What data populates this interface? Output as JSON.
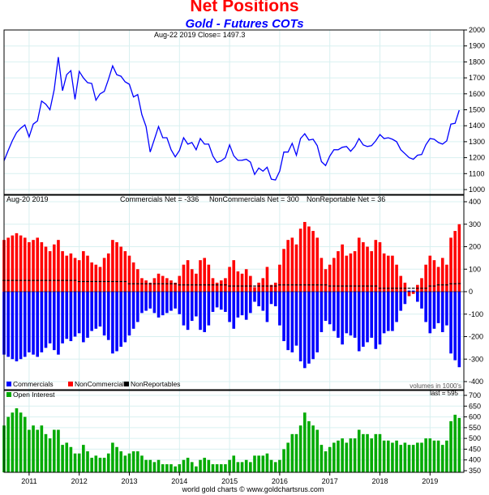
{
  "title": "Net Positions",
  "subtitle": "Gold - Futures COTs",
  "footer": "world gold charts © www.goldchartsrus.com",
  "colors": {
    "price": "#0000ff",
    "commercials": "#0000ff",
    "noncommercials": "#ff0000",
    "nonreportables": "#000000",
    "open_interest": "#00aa00",
    "grid": "#d8f0f0"
  },
  "chart_data": [
    {
      "type": "line",
      "name": "price",
      "header": "Aug-22  2019   Close= 1497.3",
      "start": 2010.5,
      "step": 0.08333,
      "ylim": [
        1000,
        2000
      ],
      "yticks": [
        "2000",
        "1900",
        "1800",
        "1700",
        "1600",
        "1500",
        "1400",
        "1300",
        "1200",
        "1100",
        "1000"
      ],
      "values": [
        1180,
        1245,
        1307,
        1357,
        1385,
        1405,
        1330,
        1410,
        1430,
        1555,
        1535,
        1500,
        1625,
        1830,
        1620,
        1720,
        1745,
        1565,
        1740,
        1700,
        1670,
        1665,
        1560,
        1600,
        1615,
        1690,
        1775,
        1720,
        1710,
        1675,
        1660,
        1580,
        1595,
        1470,
        1395,
        1235,
        1315,
        1395,
        1325,
        1325,
        1250,
        1205,
        1245,
        1325,
        1285,
        1295,
        1250,
        1320,
        1285,
        1285,
        1210,
        1170,
        1180,
        1200,
        1280,
        1212,
        1183,
        1184,
        1190,
        1172,
        1095,
        1135,
        1115,
        1140,
        1065,
        1060,
        1115,
        1235,
        1235,
        1290,
        1215,
        1320,
        1350,
        1310,
        1315,
        1275,
        1175,
        1150,
        1210,
        1250,
        1250,
        1265,
        1270,
        1240,
        1270,
        1320,
        1280,
        1270,
        1275,
        1305,
        1345,
        1320,
        1325,
        1315,
        1300,
        1250,
        1225,
        1200,
        1190,
        1215,
        1220,
        1280,
        1320,
        1315,
        1295,
        1285,
        1305,
        1410,
        1415,
        1497.3
      ]
    },
    {
      "type": "bar",
      "name": "net-positions",
      "date": "Aug-20  2019",
      "summary": [
        "Commercials Net = -336",
        "NonCommercials Net = 300",
        "NonReportable Net = 36"
      ],
      "legend": [
        "Commercials",
        "NonCommercials",
        "NonReportables"
      ],
      "note": "volumes in 1000's",
      "start": 2010.5,
      "step": 0.08333,
      "ylim": [
        -400,
        400
      ],
      "yticks": [
        "400",
        "300",
        "200",
        "100",
        "0",
        "-100",
        "-200",
        "-300",
        "-400"
      ],
      "series": [
        {
          "name": "NonCommercials",
          "values": [
            230,
            240,
            250,
            260,
            250,
            240,
            220,
            230,
            240,
            220,
            200,
            180,
            210,
            230,
            180,
            160,
            170,
            150,
            140,
            180,
            160,
            130,
            120,
            110,
            150,
            170,
            230,
            220,
            200,
            180,
            160,
            130,
            100,
            60,
            50,
            40,
            60,
            80,
            70,
            60,
            50,
            40,
            70,
            120,
            140,
            100,
            80,
            140,
            150,
            120,
            60,
            40,
            50,
            60,
            110,
            140,
            90,
            80,
            100,
            70,
            20,
            40,
            60,
            110,
            30,
            40,
            120,
            190,
            230,
            240,
            210,
            280,
            310,
            290,
            270,
            240,
            150,
            100,
            120,
            150,
            180,
            210,
            160,
            170,
            180,
            240,
            220,
            200,
            180,
            230,
            220,
            170,
            160,
            160,
            120,
            70,
            40,
            -20,
            -10,
            30,
            60,
            120,
            160,
            140,
            110,
            150,
            120,
            240,
            270,
            300
          ]
        },
        {
          "name": "Commercials",
          "values": [
            -280,
            -290,
            -300,
            -310,
            -300,
            -290,
            -270,
            -280,
            -290,
            -270,
            -250,
            -230,
            -260,
            -280,
            -230,
            -210,
            -220,
            -200,
            -185,
            -225,
            -205,
            -175,
            -165,
            -155,
            -195,
            -215,
            -275,
            -265,
            -245,
            -225,
            -195,
            -165,
            -135,
            -95,
            -85,
            -75,
            -95,
            -115,
            -105,
            -95,
            -85,
            -75,
            -100,
            -150,
            -170,
            -130,
            -110,
            -170,
            -180,
            -150,
            -90,
            -70,
            -80,
            -90,
            -135,
            -165,
            -115,
            -105,
            -125,
            -95,
            -45,
            -65,
            -85,
            -135,
            -55,
            -65,
            -150,
            -220,
            -260,
            -270,
            -240,
            -310,
            -340,
            -320,
            -300,
            -270,
            -180,
            -130,
            -145,
            -175,
            -205,
            -235,
            -185,
            -195,
            -205,
            -265,
            -245,
            -225,
            -205,
            -255,
            -235,
            -185,
            -175,
            -175,
            -135,
            -85,
            -55,
            5,
            5,
            -45,
            -75,
            -135,
            -185,
            -165,
            -140,
            -180,
            -150,
            -275,
            -305,
            -336
          ]
        },
        {
          "name": "NonReportables",
          "values": [
            50,
            50,
            50,
            50,
            50,
            50,
            50,
            50,
            50,
            50,
            50,
            50,
            50,
            50,
            50,
            50,
            50,
            50,
            45,
            45,
            45,
            45,
            45,
            45,
            45,
            45,
            45,
            45,
            45,
            45,
            35,
            35,
            35,
            35,
            35,
            35,
            35,
            35,
            35,
            35,
            35,
            35,
            30,
            30,
            30,
            30,
            30,
            30,
            30,
            30,
            30,
            30,
            30,
            30,
            25,
            25,
            25,
            25,
            25,
            25,
            25,
            25,
            25,
            25,
            25,
            25,
            30,
            30,
            30,
            30,
            30,
            30,
            30,
            30,
            30,
            30,
            30,
            30,
            25,
            25,
            25,
            25,
            25,
            25,
            25,
            25,
            25,
            25,
            25,
            25,
            15,
            15,
            15,
            15,
            15,
            15,
            15,
            15,
            15,
            15,
            15,
            15,
            25,
            25,
            30,
            30,
            30,
            35,
            35,
            36
          ]
        }
      ]
    },
    {
      "type": "bar",
      "name": "open-interest",
      "legend": "Open Interest",
      "last": "last = 595",
      "start": 2010.5,
      "step": 0.08333,
      "ylim": [
        350,
        700
      ],
      "yticks": [
        "700",
        "650",
        "600",
        "550",
        "500",
        "450",
        "400",
        "350"
      ],
      "values": [
        560,
        600,
        620,
        640,
        620,
        600,
        540,
        560,
        540,
        560,
        520,
        500,
        540,
        540,
        470,
        480,
        460,
        430,
        430,
        470,
        440,
        410,
        420,
        410,
        410,
        430,
        480,
        460,
        440,
        420,
        430,
        440,
        440,
        420,
        400,
        400,
        390,
        400,
        380,
        380,
        380,
        370,
        380,
        400,
        410,
        390,
        370,
        400,
        410,
        400,
        380,
        380,
        380,
        380,
        400,
        420,
        390,
        390,
        400,
        390,
        420,
        420,
        420,
        430,
        400,
        390,
        400,
        450,
        480,
        520,
        520,
        560,
        620,
        580,
        560,
        540,
        470,
        440,
        460,
        480,
        490,
        500,
        480,
        500,
        500,
        540,
        520,
        520,
        500,
        520,
        520,
        490,
        490,
        480,
        490,
        470,
        480,
        470,
        470,
        480,
        480,
        500,
        500,
        490,
        490,
        470,
        490,
        580,
        610,
        595
      ]
    }
  ],
  "xticks": [
    "2011",
    "2012",
    "2013",
    "2014",
    "2015",
    "2016",
    "2017",
    "2018",
    "2019"
  ]
}
